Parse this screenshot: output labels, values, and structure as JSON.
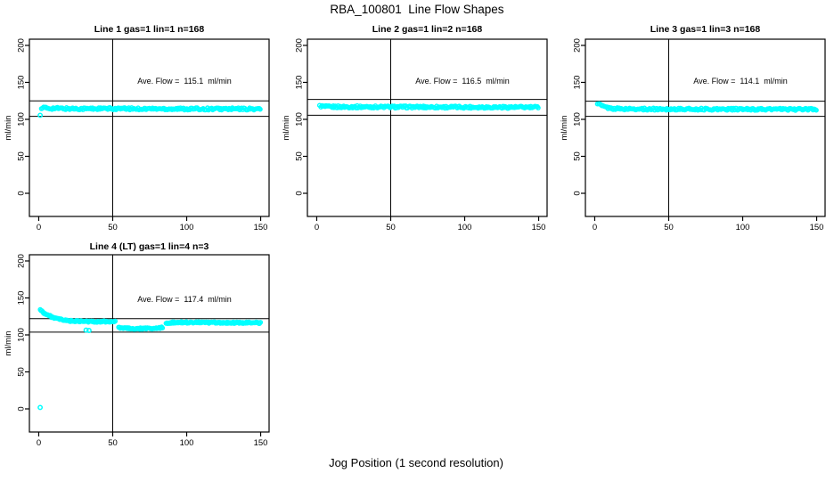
{
  "page": {
    "background": "#ffffff",
    "main_title": "RBA_100801  Line Flow Shapes",
    "x_axis_label": "Jog Position (1 second resolution)"
  },
  "chart_data": [
    {
      "type": "scatter",
      "title": "Line 1 gas=1 lin=1 n=168",
      "ylabel": "ml/min",
      "ave_flow": 115.1,
      "ave_flow_label": "Ave. Flow =  115.1  ml/min",
      "point_color": "#00FFFF",
      "axis_color": "#000000",
      "xlim": [
        -6.3,
        155.7
      ],
      "ylim": [
        -31.3,
        208.4
      ],
      "x_ticks": [
        0,
        50,
        100,
        150
      ],
      "y_ticks": [
        0,
        50,
        100,
        150,
        200
      ],
      "vline_x": 50,
      "hlines": [
        125,
        104
      ],
      "grid": false,
      "series": [
        {
          "name": "flow-band",
          "x": [
            2,
            6,
            20,
            150
          ],
          "y": [
            116,
            115,
            114.5,
            114
          ],
          "spread": 1.5,
          "step": 0.7
        }
      ],
      "outliers": [
        [
          1,
          105.5
        ]
      ]
    },
    {
      "type": "scatter",
      "title": "Line 2 gas=1 lin=2 n=168",
      "ylabel": "ml/min",
      "ave_flow": 116.5,
      "ave_flow_label": "Ave. Flow =  116.5  ml/min",
      "point_color": "#00FFFF",
      "axis_color": "#000000",
      "xlim": [
        -6.3,
        155.7
      ],
      "ylim": [
        -31.3,
        208.4
      ],
      "x_ticks": [
        0,
        50,
        100,
        150
      ],
      "y_ticks": [
        0,
        50,
        100,
        150,
        200
      ],
      "vline_x": 50,
      "hlines": [
        127,
        105.5
      ],
      "grid": false,
      "series": [
        {
          "name": "flow-band",
          "x": [
            2,
            6,
            150
          ],
          "y": [
            118,
            117,
            116.3
          ],
          "spread": 1.5,
          "step": 0.7
        }
      ],
      "outliers": []
    },
    {
      "type": "scatter",
      "title": "Line 3 gas=1 lin=3 n=168",
      "ylabel": "ml/min",
      "ave_flow": 114.1,
      "ave_flow_label": "Ave. Flow =  114.1  ml/min",
      "point_color": "#00FFFF",
      "axis_color": "#000000",
      "xlim": [
        -6.3,
        155.7
      ],
      "ylim": [
        -31.3,
        208.4
      ],
      "x_ticks": [
        0,
        50,
        100,
        150
      ],
      "y_ticks": [
        0,
        50,
        100,
        150,
        200
      ],
      "vline_x": 50,
      "hlines": [
        124.5,
        104
      ],
      "grid": false,
      "series": [
        {
          "name": "flow-band",
          "x": [
            2,
            5,
            10,
            20,
            150
          ],
          "y": [
            122,
            118,
            115,
            114,
            113.5
          ],
          "spread": 1.4,
          "step": 0.7
        }
      ],
      "outliers": []
    },
    {
      "type": "scatter",
      "title": "Line 4 (LT) gas=1 lin=4 n=3",
      "ylabel": "ml/min",
      "ave_flow": 117.4,
      "ave_flow_label": "Ave. Flow =  117.4  ml/min",
      "point_color": "#00FFFF",
      "axis_color": "#000000",
      "xlim": [
        -6.3,
        155.7
      ],
      "ylim": [
        -31.3,
        208.4
      ],
      "x_ticks": [
        0,
        50,
        100,
        150
      ],
      "y_ticks": [
        0,
        50,
        100,
        150,
        200
      ],
      "vline_x": 50,
      "hlines": [
        122,
        103.8
      ],
      "grid": false,
      "series": [
        {
          "name": "startup-decay",
          "x": [
            1,
            4,
            8,
            12,
            18,
            25,
            35,
            52
          ],
          "y": [
            134,
            129,
            125,
            122,
            119.5,
            118.5,
            118,
            118
          ],
          "spread": 1.0,
          "step": 0.55
        },
        {
          "name": "dip-segment",
          "x": [
            54,
            58,
            70,
            80,
            84
          ],
          "y": [
            110,
            109,
            108.5,
            109,
            110
          ],
          "spread": 1.0,
          "step": 0.55
        },
        {
          "name": "recovery-band",
          "x": [
            86,
            92,
            110,
            150
          ],
          "y": [
            116,
            117,
            116.8,
            116.3
          ],
          "spread": 1.0,
          "step": 0.55
        }
      ],
      "outliers": [
        [
          1,
          2
        ],
        [
          32,
          106.5
        ],
        [
          34,
          106
        ]
      ]
    }
  ]
}
